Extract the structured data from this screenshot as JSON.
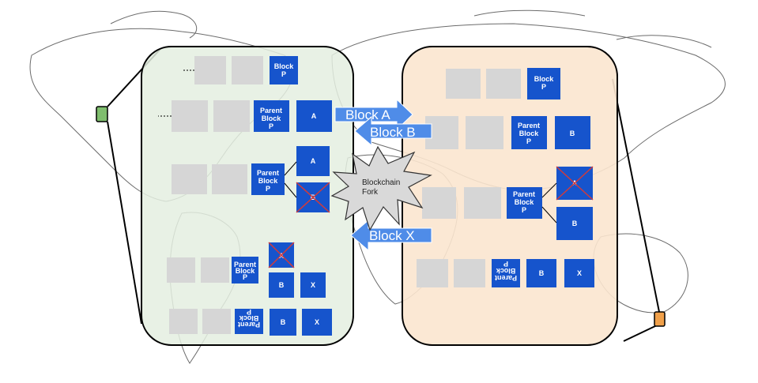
{
  "colors": {
    "left_panel": "#e4efe0",
    "right_panel": "#fbe6cf",
    "block_blue": "#1654cc",
    "gray_block": "#d6d6d6",
    "arrow_blue": "#4f8ce8",
    "node_green": "#7fbe6e",
    "node_orange": "#f0a04a",
    "fork_fill": "#d9d9d9"
  },
  "blocks": {
    "block_p": "Block P",
    "parent_block_p": "Parent Block P",
    "a": "A",
    "b": "B",
    "x": "X"
  },
  "arrows": {
    "block_a": "Block A",
    "block_b": "Block B",
    "block_x": "Block X"
  },
  "fork_label": "Blockchain Fork"
}
